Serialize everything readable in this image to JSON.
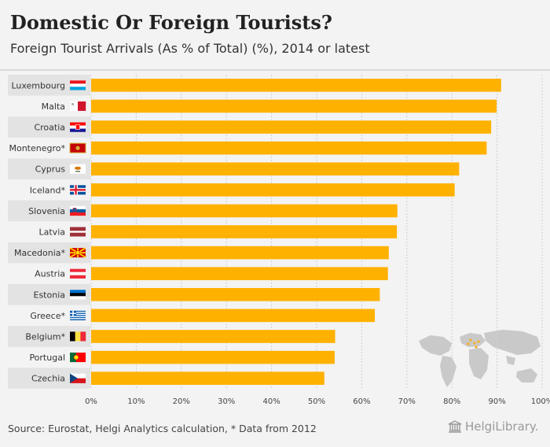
{
  "header": {
    "title": "Domestic Or Foreign Tourists?",
    "subtitle": "Foreign Tourist Arrivals (As % of Total) (%), 2014 or latest"
  },
  "footer": {
    "source": "Source: Eurostat, Helgi Analytics calculation, * Data from 2012",
    "logo": "HelgiLibrary."
  },
  "colors": {
    "bar": "#ffb100",
    "stripe": "#e3e3e3",
    "grid": "#cfcfcf",
    "map": "#c9c9c9",
    "map_highlight": "#f2b233"
  },
  "chart_data": {
    "type": "bar",
    "orientation": "horizontal",
    "title": "Domestic Or Foreign Tourists?",
    "subtitle": "Foreign Tourist Arrivals (As % of Total) (%), 2014 or latest",
    "xlabel": "",
    "ylabel": "",
    "xlim": [
      0,
      100
    ],
    "grid": true,
    "ticks": [
      "0%",
      "10%",
      "20%",
      "30%",
      "40%",
      "50%",
      "60%",
      "70%",
      "80%",
      "90%",
      "100%"
    ],
    "categories": [
      "Luxembourg",
      "Malta",
      "Croatia",
      "Montenegro*",
      "Cyprus",
      "Iceland*",
      "Slovenia",
      "Latvia",
      "Macedonia*",
      "Austria",
      "Estonia",
      "Greece*",
      "Belgium*",
      "Portugal",
      "Czechia"
    ],
    "values": [
      90.9,
      89.9,
      88.7,
      87.7,
      81.6,
      80.6,
      67.9,
      67.8,
      66.0,
      65.8,
      64.0,
      62.9,
      54.1,
      54.0,
      51.7
    ],
    "flags": [
      "luxembourg-flag",
      "malta-flag",
      "croatia-flag",
      "montenegro-flag",
      "cyprus-flag",
      "iceland-flag",
      "slovenia-flag",
      "latvia-flag",
      "macedonia-flag",
      "austria-flag",
      "estonia-flag",
      "greece-flag",
      "belgium-flag",
      "portugal-flag",
      "czechia-flag"
    ]
  }
}
